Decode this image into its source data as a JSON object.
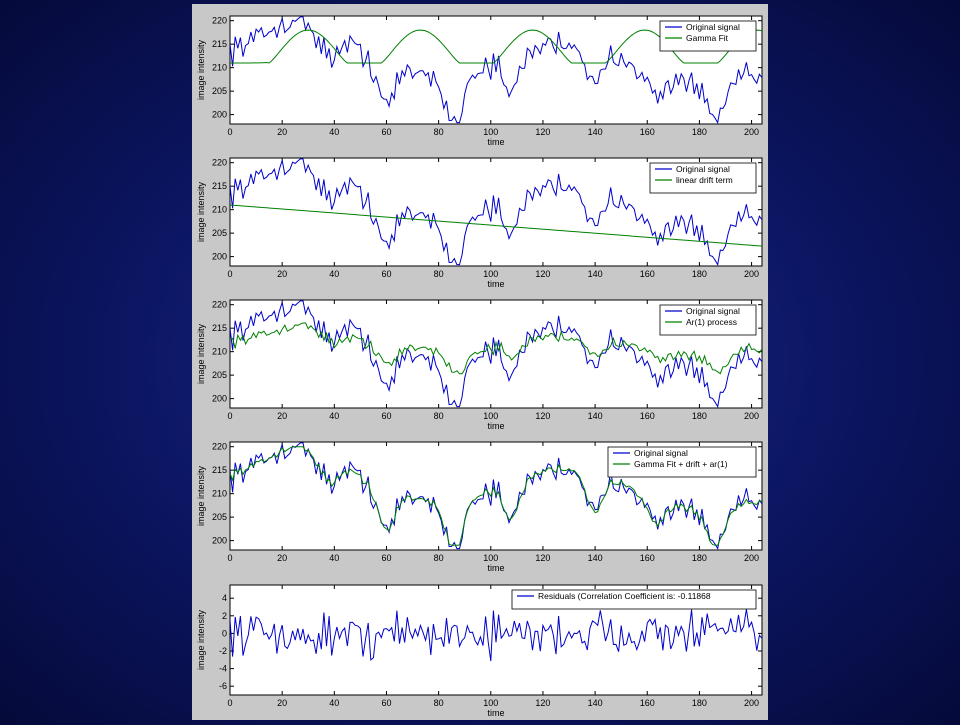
{
  "chart_data": [
    {
      "type": "line",
      "xlabel": "time",
      "ylabel": "image intensity",
      "xlim": [
        0,
        204
      ],
      "ylim": [
        198,
        221
      ],
      "xticks": [
        0,
        20,
        40,
        60,
        80,
        100,
        120,
        140,
        160,
        180,
        200
      ],
      "yticks": [
        200,
        205,
        210,
        215,
        220
      ],
      "legend_position": "top-right",
      "series": [
        {
          "name": "Original signal",
          "color": "#0000cc",
          "role": "signal"
        },
        {
          "name": "Gamma Fit",
          "color": "#008000",
          "role": "gamma"
        }
      ]
    },
    {
      "type": "line",
      "xlabel": "time",
      "ylabel": "image intensity",
      "xlim": [
        0,
        204
      ],
      "ylim": [
        198,
        221
      ],
      "xticks": [
        0,
        20,
        40,
        60,
        80,
        100,
        120,
        140,
        160,
        180,
        200
      ],
      "yticks": [
        200,
        205,
        210,
        215,
        220
      ],
      "legend_position": "top-right",
      "series": [
        {
          "name": "Original signal",
          "color": "#0000cc",
          "role": "signal"
        },
        {
          "name": "linear drift term",
          "color": "#008000",
          "role": "drift"
        }
      ]
    },
    {
      "type": "line",
      "xlabel": "time",
      "ylabel": "image intensity",
      "xlim": [
        0,
        204
      ],
      "ylim": [
        198,
        221
      ],
      "xticks": [
        0,
        20,
        40,
        60,
        80,
        100,
        120,
        140,
        160,
        180,
        200
      ],
      "yticks": [
        200,
        205,
        210,
        215,
        220
      ],
      "legend_position": "top-right",
      "series": [
        {
          "name": "Original signal",
          "color": "#0000cc",
          "role": "signal"
        },
        {
          "name": "Ar(1) process",
          "color": "#008000",
          "role": "ar1"
        }
      ]
    },
    {
      "type": "line",
      "xlabel": "time",
      "ylabel": "image intensity",
      "xlim": [
        0,
        204
      ],
      "ylim": [
        198,
        221
      ],
      "xticks": [
        0,
        20,
        40,
        60,
        80,
        100,
        120,
        140,
        160,
        180,
        200
      ],
      "yticks": [
        200,
        205,
        210,
        215,
        220
      ],
      "legend_position": "top-right",
      "series": [
        {
          "name": "Original signal",
          "color": "#0000cc",
          "role": "signal"
        },
        {
          "name": "Gamma Fit + drift + ar(1)",
          "color": "#008000",
          "role": "combined"
        }
      ]
    },
    {
      "type": "line",
      "xlabel": "time",
      "ylabel": "image intensity",
      "xlim": [
        0,
        204
      ],
      "ylim": [
        -7,
        5.5
      ],
      "xticks": [
        0,
        20,
        40,
        60,
        80,
        100,
        120,
        140,
        160,
        180,
        200
      ],
      "yticks": [
        -6,
        -4,
        -2,
        0,
        2,
        4
      ],
      "legend_position": "top-right",
      "series": [
        {
          "name": "Residuals (Correlation Coefficient is: -0.11868",
          "color": "#0000cc",
          "role": "residual"
        }
      ]
    }
  ]
}
